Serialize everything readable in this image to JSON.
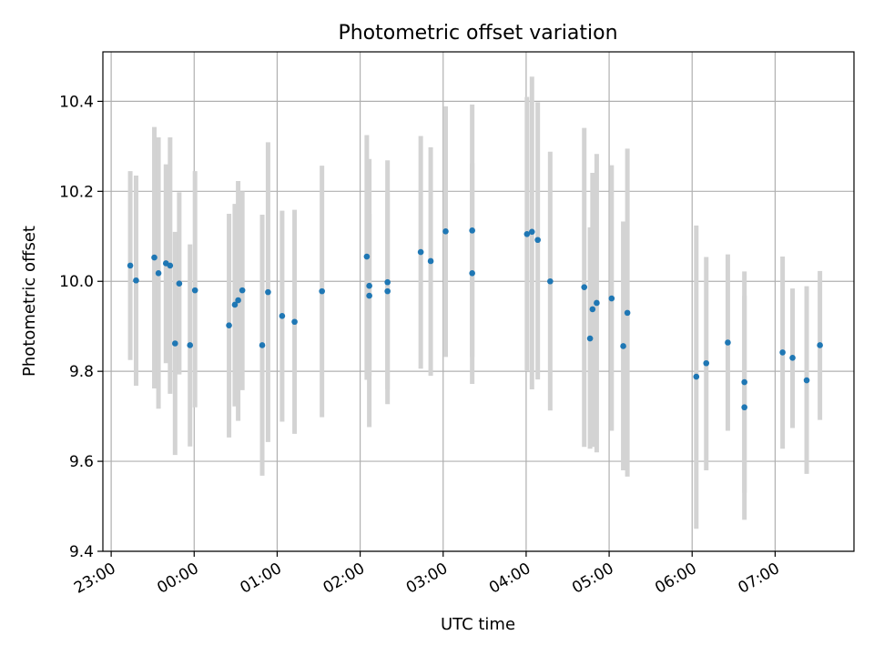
{
  "chart_data": {
    "type": "scatter",
    "title": "Photometric offset variation",
    "xlabel": "UTC time",
    "ylabel": "Photometric offset",
    "xlim_hours": [
      -1.1,
      7.95
    ],
    "ylim": [
      9.4,
      10.51
    ],
    "grid": true,
    "x_ticks": [
      {
        "hour": -1,
        "label": "23:00"
      },
      {
        "hour": 0,
        "label": "00:00"
      },
      {
        "hour": 1,
        "label": "01:00"
      },
      {
        "hour": 2,
        "label": "02:00"
      },
      {
        "hour": 3,
        "label": "03:00"
      },
      {
        "hour": 4,
        "label": "04:00"
      },
      {
        "hour": 5,
        "label": "05:00"
      },
      {
        "hour": 6,
        "label": "06:00"
      },
      {
        "hour": 7,
        "label": "07:00"
      }
    ],
    "y_ticks": [
      {
        "value": 9.4,
        "label": "9.4"
      },
      {
        "value": 9.6,
        "label": "9.6"
      },
      {
        "value": 9.8,
        "label": "9.8"
      },
      {
        "value": 10.0,
        "label": "10.0"
      },
      {
        "value": 10.2,
        "label": "10.2"
      },
      {
        "value": 10.4,
        "label": "10.4"
      }
    ],
    "colors": {
      "points": "#1f77b4",
      "errorbars": "#d3d3d3",
      "grid": "#b0b0b0"
    },
    "points": [
      {
        "x": -0.77,
        "y": 10.035,
        "lo": 9.825,
        "hi": 10.245
      },
      {
        "x": -0.7,
        "y": 10.002,
        "lo": 9.768,
        "hi": 10.235
      },
      {
        "x": -0.48,
        "y": 10.053,
        "lo": 9.762,
        "hi": 10.343
      },
      {
        "x": -0.43,
        "y": 10.018,
        "lo": 9.717,
        "hi": 10.32
      },
      {
        "x": -0.34,
        "y": 10.04,
        "lo": 9.818,
        "hi": 10.26
      },
      {
        "x": -0.29,
        "y": 10.035,
        "lo": 9.75,
        "hi": 10.32
      },
      {
        "x": -0.23,
        "y": 9.862,
        "lo": 9.614,
        "hi": 10.11
      },
      {
        "x": -0.18,
        "y": 9.995,
        "lo": 9.793,
        "hi": 10.198
      },
      {
        "x": -0.05,
        "y": 9.858,
        "lo": 9.633,
        "hi": 10.082
      },
      {
        "x": 0.01,
        "y": 9.98,
        "lo": 9.72,
        "hi": 10.245
      },
      {
        "x": 0.42,
        "y": 9.902,
        "lo": 9.653,
        "hi": 10.15
      },
      {
        "x": 0.49,
        "y": 9.948,
        "lo": 9.722,
        "hi": 10.172
      },
      {
        "x": 0.53,
        "y": 9.958,
        "lo": 9.69,
        "hi": 10.223
      },
      {
        "x": 0.58,
        "y": 9.98,
        "lo": 9.758,
        "hi": 10.2
      },
      {
        "x": 0.82,
        "y": 9.858,
        "lo": 9.568,
        "hi": 10.148
      },
      {
        "x": 0.89,
        "y": 9.976,
        "lo": 9.643,
        "hi": 10.309
      },
      {
        "x": 1.06,
        "y": 9.923,
        "lo": 9.688,
        "hi": 10.157
      },
      {
        "x": 1.21,
        "y": 9.91,
        "lo": 9.661,
        "hi": 10.159
      },
      {
        "x": 1.54,
        "y": 9.978,
        "lo": 9.698,
        "hi": 10.257
      },
      {
        "x": 2.08,
        "y": 10.055,
        "lo": 9.781,
        "hi": 10.325
      },
      {
        "x": 2.11,
        "y": 9.99,
        "lo": 9.676,
        "hi": 10.272
      },
      {
        "x": 2.11,
        "y": 9.968,
        "lo": 9.79,
        "hi": 10.15
      },
      {
        "x": 2.33,
        "y": 9.998,
        "lo": 9.727,
        "hi": 10.269
      },
      {
        "x": 2.33,
        "y": 9.978,
        "lo": 9.76,
        "hi": 10.195
      },
      {
        "x": 2.73,
        "y": 10.065,
        "lo": 9.806,
        "hi": 10.323
      },
      {
        "x": 2.85,
        "y": 10.045,
        "lo": 9.79,
        "hi": 10.298
      },
      {
        "x": 3.03,
        "y": 10.111,
        "lo": 9.832,
        "hi": 10.389
      },
      {
        "x": 3.35,
        "y": 10.113,
        "lo": 9.832,
        "hi": 10.393
      },
      {
        "x": 3.35,
        "y": 10.018,
        "lo": 9.772,
        "hi": 10.262
      },
      {
        "x": 4.01,
        "y": 10.105,
        "lo": 9.8,
        "hi": 10.41
      },
      {
        "x": 4.07,
        "y": 10.11,
        "lo": 9.76,
        "hi": 10.455
      },
      {
        "x": 4.14,
        "y": 10.092,
        "lo": 9.782,
        "hi": 10.398
      },
      {
        "x": 4.29,
        "y": 10.0,
        "lo": 9.713,
        "hi": 10.288
      },
      {
        "x": 4.7,
        "y": 9.987,
        "lo": 9.632,
        "hi": 10.341
      },
      {
        "x": 4.77,
        "y": 9.873,
        "lo": 9.628,
        "hi": 10.12
      },
      {
        "x": 4.8,
        "y": 9.938,
        "lo": 9.632,
        "hi": 10.241
      },
      {
        "x": 4.85,
        "y": 9.952,
        "lo": 9.62,
        "hi": 10.283
      },
      {
        "x": 5.03,
        "y": 9.962,
        "lo": 9.668,
        "hi": 10.258
      },
      {
        "x": 5.17,
        "y": 9.856,
        "lo": 9.58,
        "hi": 10.133
      },
      {
        "x": 5.22,
        "y": 9.93,
        "lo": 9.566,
        "hi": 10.295
      },
      {
        "x": 6.05,
        "y": 9.788,
        "lo": 9.45,
        "hi": 10.124
      },
      {
        "x": 6.17,
        "y": 9.818,
        "lo": 9.58,
        "hi": 10.054
      },
      {
        "x": 6.43,
        "y": 9.864,
        "lo": 9.668,
        "hi": 10.06
      },
      {
        "x": 6.63,
        "y": 9.776,
        "lo": 9.53,
        "hi": 10.022
      },
      {
        "x": 6.63,
        "y": 9.72,
        "lo": 9.47,
        "hi": 9.968
      },
      {
        "x": 7.09,
        "y": 9.842,
        "lo": 9.628,
        "hi": 10.055
      },
      {
        "x": 7.21,
        "y": 9.83,
        "lo": 9.674,
        "hi": 9.984
      },
      {
        "x": 7.38,
        "y": 9.78,
        "lo": 9.572,
        "hi": 9.989
      },
      {
        "x": 7.54,
        "y": 9.858,
        "lo": 9.692,
        "hi": 10.023
      }
    ]
  }
}
